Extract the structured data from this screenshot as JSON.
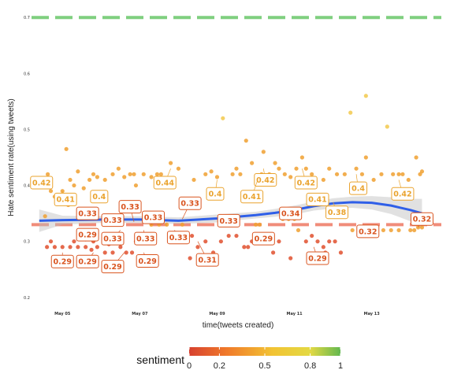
{
  "chart_data": {
    "type": "scatter",
    "xlabel": "time(tweets created)",
    "ylabel": "Hate sentiment rate(using tweets)",
    "x_range": [
      4.2,
      14.8
    ],
    "ylim": [
      0.18,
      0.72
    ],
    "y_ticks": [
      "0.2",
      "0.3",
      "0.4",
      "0.5",
      "0.6",
      "0.7"
    ],
    "x_ticks": [
      {
        "x": 5,
        "label": "May 05"
      },
      {
        "x": 7,
        "label": "May 07"
      },
      {
        "x": 9,
        "label": "May 09"
      },
      {
        "x": 11,
        "label": "May 11"
      },
      {
        "x": 13,
        "label": "May 13"
      }
    ],
    "reference_lines": [
      {
        "y": 0.7,
        "color": "#7fcf7f",
        "style": "dashed"
      },
      {
        "y": 0.33,
        "color": "#f08c7a",
        "style": "dashed"
      }
    ],
    "trend": {
      "x": [
        4.4,
        5.0,
        6.0,
        7.0,
        8.0,
        9.0,
        10.0,
        10.5,
        11.0,
        11.5,
        12.0,
        12.5,
        13.0,
        13.5,
        14.0,
        14.3
      ],
      "y": [
        0.337,
        0.338,
        0.339,
        0.339,
        0.337,
        0.341,
        0.347,
        0.351,
        0.356,
        0.363,
        0.368,
        0.37,
        0.369,
        0.364,
        0.356,
        0.35
      ],
      "color": "#2f5fe8",
      "band_halfwidth": [
        0.02,
        0.008,
        0.006,
        0.006,
        0.006,
        0.007,
        0.006,
        0.007,
        0.008,
        0.008,
        0.009,
        0.01,
        0.012,
        0.015,
        0.02,
        0.026
      ]
    },
    "points": [
      [
        4.42,
        0.4
      ],
      [
        4.55,
        0.345
      ],
      [
        4.62,
        0.42
      ],
      [
        4.7,
        0.39
      ],
      [
        4.8,
        0.38
      ],
      [
        5.0,
        0.39
      ],
      [
        5.1,
        0.465
      ],
      [
        5.15,
        0.365
      ],
      [
        5.2,
        0.41
      ],
      [
        5.3,
        0.4
      ],
      [
        5.4,
        0.425
      ],
      [
        5.55,
        0.395
      ],
      [
        5.7,
        0.41
      ],
      [
        5.8,
        0.42
      ],
      [
        5.9,
        0.415
      ],
      [
        6.1,
        0.41
      ],
      [
        6.3,
        0.42
      ],
      [
        6.45,
        0.43
      ],
      [
        6.6,
        0.415
      ],
      [
        6.75,
        0.42
      ],
      [
        6.85,
        0.42
      ],
      [
        6.9,
        0.4
      ],
      [
        7.1,
        0.42
      ],
      [
        7.3,
        0.415
      ],
      [
        7.45,
        0.42
      ],
      [
        7.55,
        0.42
      ],
      [
        7.8,
        0.44
      ],
      [
        8.0,
        0.43
      ],
      [
        8.4,
        0.41
      ],
      [
        8.7,
        0.42
      ],
      [
        8.85,
        0.425
      ],
      [
        9.0,
        0.415
      ],
      [
        9.15,
        0.52
      ],
      [
        9.4,
        0.42
      ],
      [
        9.5,
        0.43
      ],
      [
        9.6,
        0.42
      ],
      [
        9.75,
        0.48
      ],
      [
        9.9,
        0.44
      ],
      [
        10.05,
        0.415
      ],
      [
        10.15,
        0.42
      ],
      [
        10.2,
        0.46
      ],
      [
        10.35,
        0.42
      ],
      [
        10.5,
        0.44
      ],
      [
        10.6,
        0.43
      ],
      [
        10.75,
        0.42
      ],
      [
        10.9,
        0.415
      ],
      [
        11.05,
        0.43
      ],
      [
        11.2,
        0.45
      ],
      [
        11.3,
        0.43
      ],
      [
        11.45,
        0.42
      ],
      [
        11.55,
        0.38
      ],
      [
        11.75,
        0.41
      ],
      [
        11.9,
        0.43
      ],
      [
        12.1,
        0.42
      ],
      [
        12.3,
        0.42
      ],
      [
        12.45,
        0.53
      ],
      [
        12.6,
        0.43
      ],
      [
        12.75,
        0.42
      ],
      [
        12.85,
        0.45
      ],
      [
        13.05,
        0.41
      ],
      [
        13.25,
        0.42
      ],
      [
        13.4,
        0.505
      ],
      [
        13.55,
        0.42
      ],
      [
        13.7,
        0.42
      ],
      [
        13.8,
        0.42
      ],
      [
        13.95,
        0.41
      ],
      [
        14.15,
        0.45
      ],
      [
        14.25,
        0.42
      ],
      [
        14.3,
        0.425
      ],
      [
        12.85,
        0.56
      ],
      [
        4.6,
        0.29
      ],
      [
        4.8,
        0.29
      ],
      [
        5.0,
        0.29
      ],
      [
        5.2,
        0.29
      ],
      [
        5.4,
        0.29
      ],
      [
        5.6,
        0.29
      ],
      [
        5.75,
        0.285
      ],
      [
        5.9,
        0.29
      ],
      [
        6.1,
        0.28
      ],
      [
        6.3,
        0.28
      ],
      [
        6.5,
        0.29
      ],
      [
        6.65,
        0.28
      ],
      [
        6.8,
        0.28
      ],
      [
        4.7,
        0.3
      ],
      [
        5.3,
        0.3
      ],
      [
        5.8,
        0.3
      ],
      [
        6.2,
        0.295
      ],
      [
        6.9,
        0.3
      ],
      [
        7.1,
        0.34
      ],
      [
        7.3,
        0.33
      ],
      [
        7.5,
        0.33
      ],
      [
        7.7,
        0.33
      ],
      [
        7.9,
        0.315
      ],
      [
        8.1,
        0.33
      ],
      [
        8.2,
        0.3
      ],
      [
        8.35,
        0.31
      ],
      [
        8.5,
        0.29
      ],
      [
        8.7,
        0.3
      ],
      [
        8.9,
        0.28
      ],
      [
        9.1,
        0.3
      ],
      [
        9.3,
        0.31
      ],
      [
        9.5,
        0.31
      ],
      [
        9.7,
        0.29
      ],
      [
        9.9,
        0.3
      ],
      [
        10.0,
        0.33
      ],
      [
        10.1,
        0.33
      ],
      [
        10.2,
        0.31
      ],
      [
        10.3,
        0.3
      ],
      [
        10.45,
        0.28
      ],
      [
        10.6,
        0.3
      ],
      [
        10.7,
        0.34
      ],
      [
        10.85,
        0.34
      ],
      [
        11.0,
        0.34
      ],
      [
        11.1,
        0.32
      ],
      [
        11.3,
        0.3
      ],
      [
        11.45,
        0.31
      ],
      [
        11.6,
        0.3
      ],
      [
        11.75,
        0.29
      ],
      [
        11.9,
        0.3
      ],
      [
        12.05,
        0.3
      ],
      [
        12.2,
        0.28
      ],
      [
        12.5,
        0.32
      ],
      [
        12.7,
        0.32
      ],
      [
        12.9,
        0.32
      ],
      [
        13.1,
        0.32
      ],
      [
        13.3,
        0.32
      ],
      [
        13.5,
        0.32
      ],
      [
        13.7,
        0.32
      ],
      [
        14.0,
        0.32
      ],
      [
        14.1,
        0.32
      ],
      [
        14.2,
        0.325
      ],
      [
        14.3,
        0.325
      ],
      [
        10.9,
        0.27
      ],
      [
        11.8,
        0.28
      ],
      [
        8.3,
        0.27
      ],
      [
        9.8,
        0.29
      ]
    ],
    "labels": [
      {
        "text": "0.42",
        "x": 4.46,
        "y": 0.405,
        "lx": 4.42,
        "ly": 0.4
      },
      {
        "text": "0.41",
        "x": 5.08,
        "y": 0.375,
        "lx": 5.0,
        "ly": 0.39
      },
      {
        "text": "0.4",
        "x": 5.95,
        "y": 0.38,
        "lx": 5.8,
        "ly": 0.39
      },
      {
        "text": "0.44",
        "x": 7.65,
        "y": 0.405,
        "lx": 7.8,
        "ly": 0.43
      },
      {
        "text": "0.4",
        "x": 8.95,
        "y": 0.385,
        "lx": 9.0,
        "ly": 0.41
      },
      {
        "text": "0.42",
        "x": 10.25,
        "y": 0.41,
        "lx": 10.2,
        "ly": 0.43
      },
      {
        "text": "0.41",
        "x": 9.9,
        "y": 0.38,
        "lx": 10.05,
        "ly": 0.41
      },
      {
        "text": "0.42",
        "x": 11.3,
        "y": 0.405,
        "lx": 11.2,
        "ly": 0.43
      },
      {
        "text": "0.41",
        "x": 11.6,
        "y": 0.375,
        "lx": 11.55,
        "ly": 0.38
      },
      {
        "text": "0.4",
        "x": 12.65,
        "y": 0.395,
        "lx": 12.6,
        "ly": 0.42
      },
      {
        "text": "0.42",
        "x": 13.8,
        "y": 0.385,
        "lx": 13.7,
        "ly": 0.41
      },
      {
        "text": "0.33",
        "x": 5.65,
        "y": 0.35,
        "lx": 5.8,
        "ly": 0.34
      },
      {
        "text": "0.33",
        "x": 6.75,
        "y": 0.362,
        "lx": 6.85,
        "ly": 0.335
      },
      {
        "text": "0.33",
        "x": 8.3,
        "y": 0.368,
        "lx": 8.1,
        "ly": 0.34
      },
      {
        "text": "0.33",
        "x": 6.3,
        "y": 0.338,
        "lx": 6.5,
        "ly": 0.33
      },
      {
        "text": "0.33",
        "x": 7.35,
        "y": 0.343,
        "lx": 7.3,
        "ly": 0.33
      },
      {
        "text": "0.33",
        "x": 9.3,
        "y": 0.337,
        "lx": 9.2,
        "ly": 0.33
      },
      {
        "text": "0.34",
        "x": 10.9,
        "y": 0.35,
        "lx": 10.7,
        "ly": 0.34
      },
      {
        "text": "0.38",
        "x": 12.1,
        "y": 0.352,
        "lx": 12.0,
        "ly": 0.37
      },
      {
        "text": "0.32",
        "x": 14.3,
        "y": 0.34,
        "lx": 14.2,
        "ly": 0.325
      },
      {
        "text": "0.29",
        "x": 5.65,
        "y": 0.312,
        "lx": 5.6,
        "ly": 0.3
      },
      {
        "text": "0.33",
        "x": 6.3,
        "y": 0.305,
        "lx": 6.5,
        "ly": 0.32
      },
      {
        "text": "0.33",
        "x": 7.15,
        "y": 0.305,
        "lx": 7.1,
        "ly": 0.32
      },
      {
        "text": "0.33",
        "x": 8.0,
        "y": 0.307,
        "lx": 7.9,
        "ly": 0.32
      },
      {
        "text": "0.29",
        "x": 10.2,
        "y": 0.305,
        "lx": 10.0,
        "ly": 0.31
      },
      {
        "text": "0.32",
        "x": 12.9,
        "y": 0.318,
        "lx": 12.7,
        "ly": 0.32
      },
      {
        "text": "0.29",
        "x": 5.0,
        "y": 0.264,
        "lx": 5.0,
        "ly": 0.28
      },
      {
        "text": "0.29",
        "x": 5.65,
        "y": 0.264,
        "lx": 5.8,
        "ly": 0.28
      },
      {
        "text": "0.29",
        "x": 6.3,
        "y": 0.255,
        "lx": 6.6,
        "ly": 0.28
      },
      {
        "text": "0.29",
        "x": 7.2,
        "y": 0.265,
        "lx": 7.1,
        "ly": 0.28
      },
      {
        "text": "0.31",
        "x": 8.75,
        "y": 0.267,
        "lx": 8.5,
        "ly": 0.3
      },
      {
        "text": "0.29",
        "x": 11.6,
        "y": 0.27,
        "lx": 11.5,
        "ly": 0.29
      }
    ]
  },
  "legend": {
    "title": "sentiment",
    "ticks": [
      "0",
      "0.2",
      "0.5",
      "0.8",
      "1"
    ],
    "tick_values": [
      0,
      0.2,
      0.5,
      0.8,
      1
    ],
    "gradient_colors": [
      "#d7412f",
      "#f07a2a",
      "#f2c333",
      "#e3d944",
      "#63b84f"
    ]
  },
  "colors": {
    "low": "#e0502e",
    "mid": "#f0a030",
    "high": "#f2c94c",
    "label_low": "#d9541f",
    "label_high": "#eaa32e"
  }
}
